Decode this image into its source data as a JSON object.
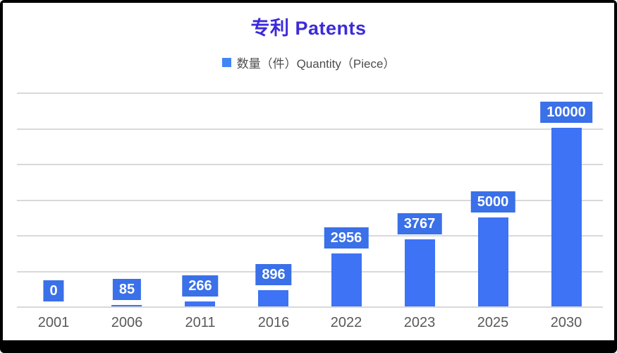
{
  "title": "专利 Patents",
  "legend": {
    "label": "数量（件）Quantity（Piece）"
  },
  "colors": {
    "frame": "#000000",
    "background": "#FFFFFF",
    "title": "#3C2BD9",
    "legend_text": "#4D4D4D",
    "legend_swatch": "#4285F4",
    "gridline": "#D9D9D9",
    "bar": "#3D73F4",
    "label_box": "#3A70E8",
    "label_text": "#FFFFFF",
    "axis_text": "#595959"
  },
  "chart_data": {
    "type": "bar",
    "title": "专利 Patents",
    "categories": [
      "2001",
      "2006",
      "2011",
      "2016",
      "2022",
      "2023",
      "2025",
      "2030"
    ],
    "series": [
      {
        "name": "数量（件）Quantity（Piece）",
        "values": [
          0,
          85,
          266,
          896,
          2956,
          3767,
          5000,
          10000
        ]
      }
    ],
    "value_labels": [
      "0",
      "85",
      "266",
      "896",
      "2956",
      "3767",
      "5000",
      "10000"
    ],
    "xlabel": "",
    "ylabel": "",
    "ylim": [
      0,
      12000
    ],
    "gridline_interval": 2000,
    "grid": true,
    "y_axis_tick_labels_visible": false,
    "legend_position": "top",
    "bar_color": "#3D73F4",
    "data_label_style": "white-on-blue-box"
  }
}
